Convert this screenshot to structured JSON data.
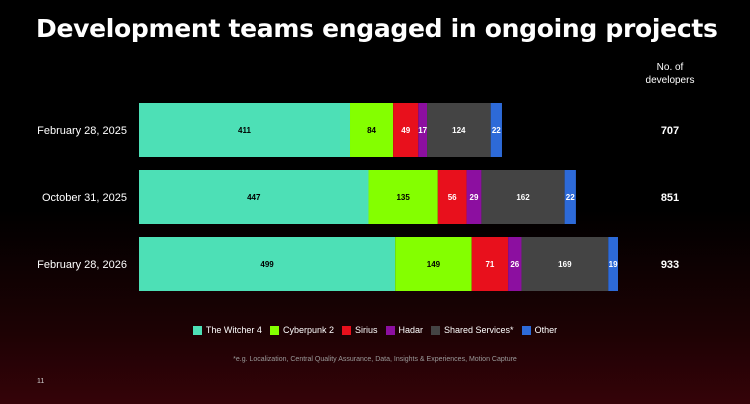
{
  "title": "Development teams engaged in ongoing projects",
  "total_header": "No. of developers",
  "footnote": "*e.g. Localization, Central Quality Assurance, Data, Insights & Experiences, Motion Capture",
  "page_number": "11",
  "chart_data": {
    "type": "bar",
    "orientation": "horizontal",
    "stacked": true,
    "categories": [
      "February 28, 2025",
      "October 31, 2025",
      "February 28, 2026"
    ],
    "series": [
      {
        "name": "The Witcher 4",
        "color": "#4de0b6",
        "label_color": "#000000",
        "values": [
          411,
          447,
          499
        ]
      },
      {
        "name": "Cyberpunk 2",
        "color": "#84ff00",
        "label_color": "#000000",
        "values": [
          84,
          135,
          149
        ]
      },
      {
        "name": "Sirius",
        "color": "#e8101c",
        "label_color": "#ffffff",
        "values": [
          49,
          56,
          71
        ]
      },
      {
        "name": "Hadar",
        "color": "#8c0fa0",
        "label_color": "#ffffff",
        "values": [
          17,
          29,
          26
        ]
      },
      {
        "name": "Shared Services*",
        "color": "#444444",
        "label_color": "#ffffff",
        "values": [
          124,
          162,
          169
        ]
      },
      {
        "name": "Other",
        "color": "#2d6ad8",
        "label_color": "#ffffff",
        "values": [
          22,
          22,
          19
        ]
      }
    ],
    "totals": [
      "707",
      "851",
      "933"
    ],
    "grid": false,
    "legend_position": "bottom"
  }
}
